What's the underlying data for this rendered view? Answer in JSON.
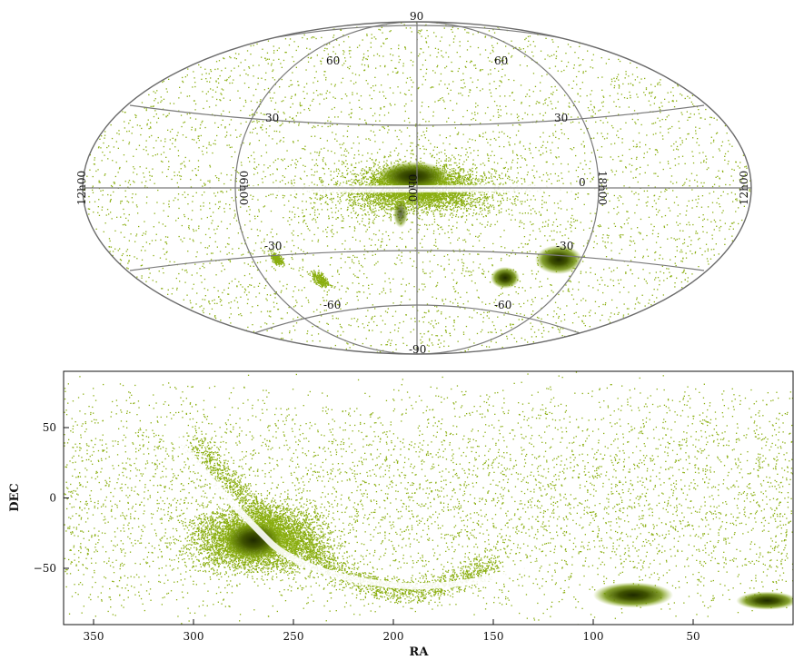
{
  "chart_data": [
    {
      "type": "scatter",
      "projection": "aitoff-hammer",
      "point_color": "#8aae10",
      "dense_color": "#1f2a00",
      "dec_grid_labels": [
        "90",
        "60",
        "60",
        "30",
        "30",
        "0",
        "-30",
        "-30",
        "-60",
        "-60",
        "-90"
      ],
      "ra_grid_labels": [
        "12h00",
        "06h00",
        "0h00",
        "18h00",
        "12h00"
      ],
      "features": [
        {
          "label": "",
          "lon": 0,
          "lat": 0,
          "description": "galactic-bulge"
        },
        {
          "label": "",
          "lon": -80,
          "lat": -33,
          "description": "lmc"
        },
        {
          "label": "",
          "lon": -62,
          "lat": -44,
          "description": "smc"
        }
      ]
    },
    {
      "type": "scatter",
      "xlabel": "RA",
      "ylabel": "DEC",
      "xlim": [
        365,
        0
      ],
      "ylim": [
        -90,
        90
      ],
      "xticks": [
        350,
        300,
        250,
        200,
        150,
        100,
        50
      ],
      "yticks": [
        50,
        0,
        -50
      ],
      "xtick_labels": [
        "350",
        "300",
        "250",
        "200",
        "150",
        "100",
        "50"
      ],
      "ytick_labels": [
        "50",
        "0",
        "−50"
      ],
      "point_color": "#8aae10",
      "dense_color": "#1f2a00",
      "clusters": [
        {
          "name": "",
          "ra": 270,
          "dec": -30
        },
        {
          "name": "",
          "ra": 80,
          "dec": -69
        },
        {
          "name": "",
          "ra": 13,
          "dec": -73
        }
      ]
    }
  ]
}
